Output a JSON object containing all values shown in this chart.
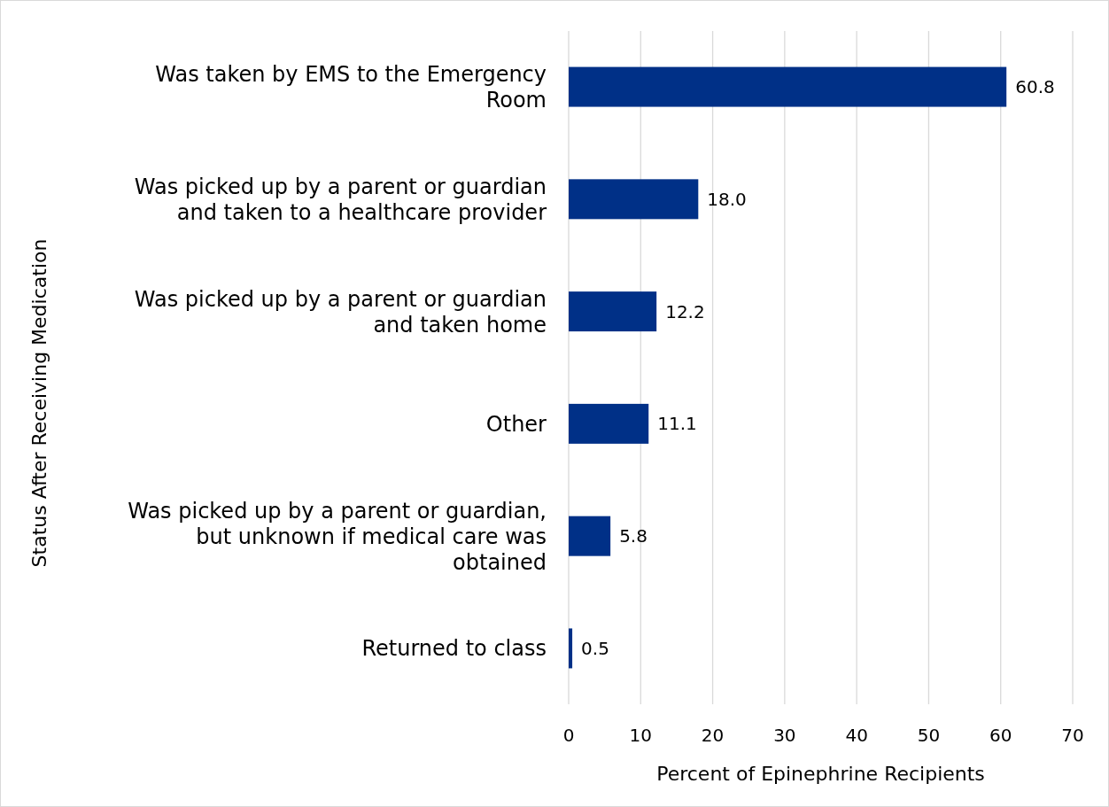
{
  "chart_data": {
    "type": "bar",
    "orientation": "horizontal",
    "xlabel": "Percent of Epinephrine Recipients",
    "ylabel": "Status After Receiving Medication",
    "categories": [
      "Was taken by EMS to the Emergency Room",
      "Was picked up by a parent or guardian and taken to a healthcare provider",
      "Was picked up by a parent or guardian and taken home",
      "Other",
      "Was picked up by a parent or guardian, but unknown if medical care was obtained",
      "Returned to class"
    ],
    "values": [
      60.8,
      18.0,
      12.2,
      11.1,
      5.8,
      0.5
    ],
    "value_labels": [
      "60.8",
      "18.0",
      "12.2",
      "11.1",
      "5.8",
      "0.5"
    ],
    "color": "#003087",
    "xlim": [
      0,
      70
    ],
    "xticks": [
      0,
      10,
      20,
      30,
      40,
      50,
      60,
      70
    ],
    "grid": "x"
  }
}
